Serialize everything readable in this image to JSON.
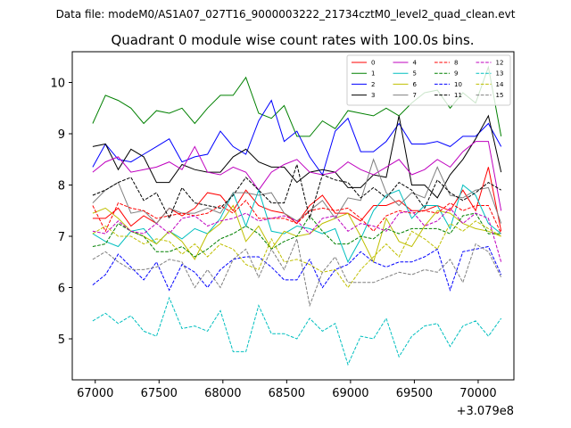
{
  "chart_data": {
    "type": "line",
    "suptitle": "Data file: modeM0/AS1A07_027T16_9000003222_21734cztM0_level2_quad_clean.evt",
    "title": "Quadrant 0 module wise count rates with 100.0s bins.",
    "xlabel": "",
    "ylabel": "",
    "x_offset_label": "+3.079e8",
    "xlim": [
      66820,
      70280
    ],
    "ylim": [
      4.2,
      10.6
    ],
    "x_ticks": [
      67000,
      67500,
      68000,
      68500,
      69000,
      69500,
      70000
    ],
    "x_tick_labels": [
      "67000",
      "67500",
      "68000",
      "68500",
      "69000",
      "69500",
      "70000"
    ],
    "y_ticks": [
      5,
      6,
      7,
      8,
      9,
      10
    ],
    "y_tick_labels": [
      "5",
      "6",
      "7",
      "8",
      "9",
      "10"
    ],
    "legend_position": "upper right",
    "legend_columns": 4,
    "x": [
      66980,
      67080,
      67180,
      67280,
      67380,
      67480,
      67580,
      67680,
      67780,
      67880,
      67980,
      68080,
      68180,
      68280,
      68380,
      68480,
      68580,
      68680,
      68780,
      68880,
      68980,
      69080,
      69180,
      69280,
      69380,
      69480,
      69580,
      69680,
      69780,
      69880,
      69980,
      70080,
      70180
    ],
    "series": [
      {
        "name": "0",
        "color": "#ff0000",
        "dash": "solid",
        "values": [
          7.35,
          7.35,
          7.55,
          7.2,
          7.4,
          7.25,
          7.55,
          7.4,
          7.55,
          7.85,
          7.8,
          7.5,
          7.9,
          7.6,
          7.5,
          7.45,
          7.25,
          7.6,
          7.8,
          7.45,
          7.45,
          7.3,
          7.6,
          7.6,
          7.7,
          7.5,
          7.5,
          7.6,
          7.5,
          7.9,
          7.5,
          8.35,
          7.1
        ]
      },
      {
        "name": "1",
        "color": "#008000",
        "dash": "solid",
        "values": [
          9.2,
          9.75,
          9.65,
          9.5,
          9.2,
          9.45,
          9.4,
          9.5,
          9.2,
          9.5,
          9.75,
          9.75,
          10.1,
          9.4,
          9.3,
          9.55,
          8.95,
          8.95,
          9.25,
          9.1,
          9.45,
          9.4,
          9.35,
          9.5,
          9.35,
          9.6,
          9.8,
          9.85,
          9.5,
          9.8,
          9.6,
          10.3,
          8.95
        ]
      },
      {
        "name": "2",
        "color": "#0000ff",
        "dash": "solid",
        "values": [
          8.35,
          8.8,
          8.5,
          8.45,
          8.6,
          8.75,
          8.9,
          8.45,
          8.55,
          8.6,
          9.05,
          8.75,
          8.6,
          9.25,
          9.65,
          8.85,
          9.05,
          8.55,
          8.2,
          9.05,
          9.3,
          8.65,
          8.65,
          8.85,
          9.2,
          8.8,
          8.8,
          8.85,
          8.75,
          8.95,
          8.95,
          9.2,
          8.75
        ]
      },
      {
        "name": "3",
        "color": "#000000",
        "dash": "solid",
        "values": [
          8.75,
          8.8,
          8.3,
          8.7,
          8.55,
          8.05,
          8.05,
          8.4,
          8.3,
          8.25,
          8.25,
          8.55,
          8.7,
          8.45,
          8.35,
          8.35,
          8.05,
          8.25,
          8.3,
          8.25,
          7.95,
          7.95,
          8.2,
          8.15,
          9.35,
          8.0,
          8.0,
          7.75,
          8.2,
          8.5,
          8.9,
          9.35,
          8.25
        ]
      },
      {
        "name": "4",
        "color": "#bf00bf",
        "dash": "solid",
        "values": [
          8.25,
          8.45,
          8.55,
          8.25,
          8.3,
          8.35,
          8.45,
          8.3,
          8.75,
          8.25,
          8.2,
          8.35,
          8.25,
          7.9,
          8.25,
          8.4,
          8.5,
          8.25,
          8.2,
          8.25,
          8.45,
          8.3,
          8.2,
          8.35,
          8.5,
          8.2,
          8.3,
          8.5,
          8.35,
          8.65,
          8.85,
          8.85,
          7.5
        ]
      },
      {
        "name": "5",
        "color": "#00bfbf",
        "dash": "solid",
        "values": [
          7.05,
          6.9,
          6.8,
          7.1,
          7.15,
          6.85,
          7.1,
          6.95,
          7.15,
          7.05,
          7.35,
          7.85,
          7.2,
          7.9,
          7.1,
          7.05,
          7.2,
          7.15,
          7.05,
          7.15,
          6.5,
          6.95,
          7.5,
          7.8,
          7.9,
          7.35,
          7.6,
          7.6,
          7.15,
          8.0,
          7.8,
          7.25,
          7.05
        ]
      },
      {
        "name": "6",
        "color": "#bfbf00",
        "dash": "solid",
        "values": [
          7.45,
          7.55,
          7.35,
          7.1,
          7.0,
          6.85,
          7.1,
          6.9,
          6.55,
          7.05,
          7.25,
          7.6,
          6.9,
          7.2,
          6.75,
          7.1,
          7.0,
          7.05,
          7.25,
          7.35,
          7.45,
          7.0,
          6.5,
          7.35,
          6.9,
          6.8,
          7.2,
          7.5,
          7.45,
          7.25,
          7.15,
          7.1,
          7.0
        ]
      },
      {
        "name": "7",
        "color": "#808080",
        "dash": "solid",
        "values": [
          7.65,
          7.9,
          8.05,
          7.45,
          7.5,
          7.25,
          7.55,
          7.45,
          7.45,
          7.55,
          7.45,
          7.85,
          7.85,
          7.8,
          7.85,
          7.45,
          7.3,
          7.5,
          7.7,
          7.35,
          7.75,
          7.7,
          8.5,
          7.85,
          7.6,
          7.85,
          7.75,
          8.35,
          7.8,
          7.75,
          7.9,
          7.95,
          7.25
        ]
      },
      {
        "name": "8",
        "color": "#ff0000",
        "dash": "dashed",
        "values": [
          7.6,
          7.1,
          7.65,
          7.55,
          7.5,
          7.35,
          7.4,
          7.45,
          7.4,
          7.45,
          7.6,
          7.45,
          7.7,
          7.35,
          7.35,
          7.35,
          7.25,
          7.5,
          7.55,
          7.5,
          7.55,
          7.35,
          7.1,
          7.4,
          7.5,
          7.45,
          7.5,
          7.45,
          7.65,
          7.5,
          7.6,
          7.6,
          7.05
        ]
      },
      {
        "name": "9",
        "color": "#008000",
        "dash": "dashed",
        "values": [
          6.8,
          6.85,
          7.25,
          7.1,
          7.0,
          6.7,
          6.7,
          6.8,
          6.6,
          6.75,
          6.95,
          7.05,
          7.2,
          7.05,
          6.75,
          6.9,
          7.0,
          7.4,
          7.1,
          6.85,
          6.85,
          7.0,
          6.95,
          7.15,
          7.05,
          7.15,
          7.15,
          7.15,
          7.05,
          7.4,
          7.45,
          7.05,
          7.05
        ]
      },
      {
        "name": "10",
        "color": "#0000ff",
        "dash": "dashed",
        "values": [
          6.05,
          6.25,
          6.65,
          6.4,
          6.15,
          6.5,
          5.95,
          6.45,
          6.3,
          6.0,
          6.35,
          6.55,
          6.6,
          6.6,
          6.4,
          6.15,
          6.15,
          6.55,
          6.0,
          6.35,
          6.45,
          6.7,
          6.5,
          6.4,
          6.5,
          6.5,
          6.6,
          6.75,
          5.95,
          6.7,
          6.75,
          6.8,
          6.25
        ]
      },
      {
        "name": "11",
        "color": "#000000",
        "dash": "dashed",
        "values": [
          7.8,
          7.9,
          8.05,
          8.15,
          7.7,
          7.85,
          7.35,
          7.95,
          7.65,
          7.6,
          7.55,
          7.8,
          8.15,
          7.9,
          7.65,
          7.65,
          8.4,
          7.35,
          8.2,
          8.1,
          8.05,
          7.75,
          7.95,
          7.75,
          8.05,
          7.9,
          7.55,
          8.1,
          7.85,
          7.7,
          7.85,
          8.05,
          7.9
        ]
      },
      {
        "name": "12",
        "color": "#bf00bf",
        "dash": "dashed",
        "values": [
          7.1,
          7.05,
          7.3,
          7.1,
          7.05,
          7.25,
          7.05,
          7.35,
          7.4,
          7.2,
          7.3,
          7.35,
          7.45,
          7.3,
          7.35,
          7.4,
          7.3,
          7.05,
          7.35,
          7.4,
          7.1,
          7.25,
          7.2,
          7.1,
          7.45,
          7.5,
          7.2,
          7.3,
          7.55,
          7.25,
          7.45,
          7.35,
          6.5
        ]
      },
      {
        "name": "13",
        "color": "#00bfbf",
        "dash": "dashed",
        "values": [
          5.35,
          5.5,
          5.3,
          5.45,
          5.15,
          5.05,
          5.8,
          5.2,
          5.25,
          5.15,
          5.55,
          4.75,
          4.75,
          5.65,
          5.1,
          5.1,
          5.0,
          5.4,
          5.15,
          5.3,
          4.5,
          5.05,
          5.0,
          5.4,
          4.65,
          5.05,
          5.25,
          5.3,
          4.85,
          5.25,
          5.35,
          5.05,
          5.4
        ]
      },
      {
        "name": "14",
        "color": "#bfbf00",
        "dash": "dashed",
        "values": [
          7.05,
          7.2,
          7.0,
          7.0,
          6.85,
          6.95,
          6.9,
          6.65,
          6.85,
          6.6,
          6.85,
          6.75,
          6.45,
          6.35,
          6.95,
          6.5,
          6.55,
          6.45,
          6.3,
          6.35,
          6.0,
          6.35,
          6.6,
          6.85,
          6.6,
          7.1,
          6.95,
          6.75,
          7.25,
          7.1,
          7.3,
          7.15,
          7.0
        ]
      },
      {
        "name": "15",
        "color": "#808080",
        "dash": "dashed",
        "values": [
          6.55,
          6.7,
          6.5,
          6.35,
          6.35,
          6.4,
          6.55,
          6.5,
          6.0,
          6.35,
          6.0,
          6.55,
          6.75,
          6.2,
          6.75,
          6.35,
          6.95,
          5.65,
          6.3,
          6.6,
          6.1,
          6.1,
          6.1,
          6.2,
          6.3,
          6.25,
          6.35,
          6.3,
          6.55,
          6.1,
          6.85,
          6.7,
          6.2
        ]
      }
    ]
  }
}
